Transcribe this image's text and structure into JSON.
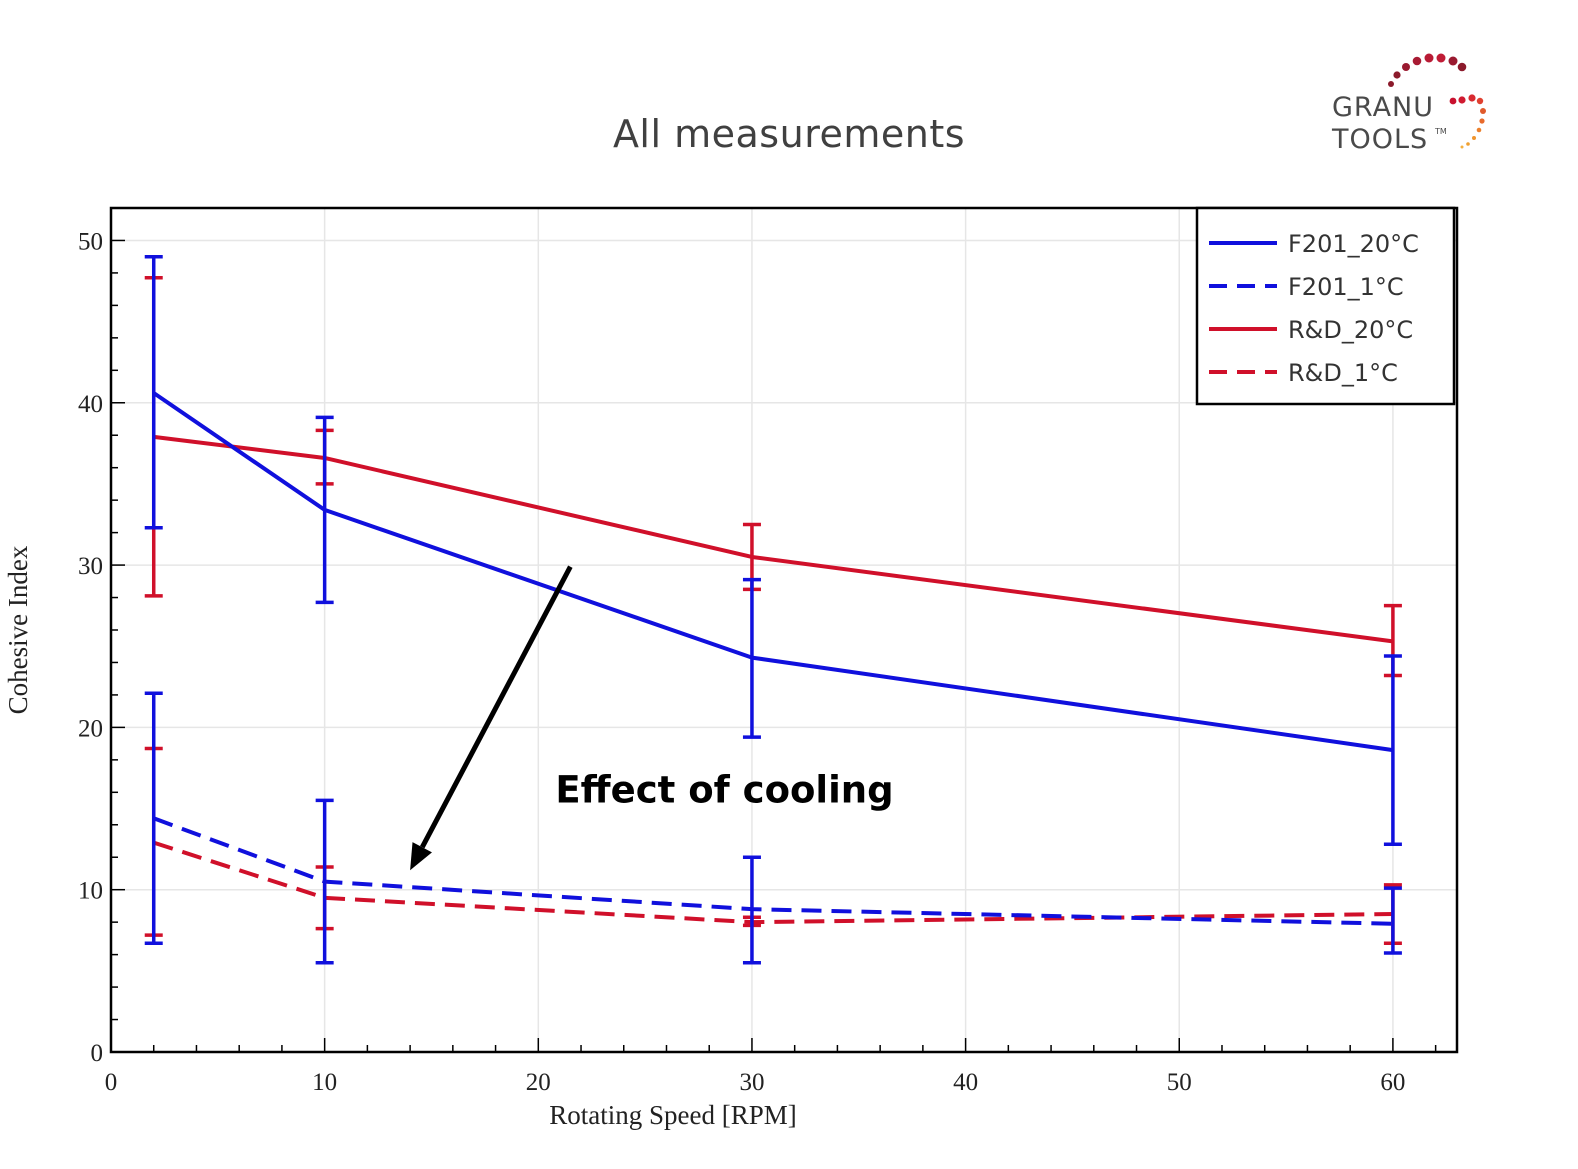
{
  "slide": {
    "title": "All measurements",
    "logo": {
      "line1": "GRANU",
      "line2": "TOOLS",
      "tm": "TM",
      "colors": [
        "#8b1a2b",
        "#c8102e",
        "#e05a2b",
        "#f0a030"
      ]
    }
  },
  "chart_data": {
    "type": "line",
    "title": "",
    "xlabel": "Rotating Speed [RPM]",
    "ylabel": "Cohesive Index",
    "xlim": [
      0,
      63
    ],
    "ylim": [
      0,
      52
    ],
    "xticks": [
      0,
      10,
      20,
      30,
      40,
      50,
      60
    ],
    "yticks": [
      0,
      10,
      20,
      30,
      40,
      50
    ],
    "grid": true,
    "legend_position": "top-right",
    "x": [
      2,
      10,
      30,
      60
    ],
    "series": [
      {
        "name": "F201_20°C",
        "color": "#1010dd",
        "dash": "solid",
        "values": [
          40.6,
          33.4,
          24.3,
          18.6
        ],
        "err_low": [
          32.3,
          27.7,
          19.4,
          12.8
        ],
        "err_high": [
          49.0,
          39.1,
          29.1,
          24.4
        ]
      },
      {
        "name": "F201_1°C",
        "color": "#1010dd",
        "dash": "dashed",
        "values": [
          14.4,
          10.5,
          8.8,
          7.9
        ],
        "err_low": [
          6.7,
          5.5,
          5.5,
          6.1
        ],
        "err_high": [
          22.1,
          15.5,
          12.0,
          10.1
        ]
      },
      {
        "name": "R&D_20°C",
        "color": "#d0102a",
        "dash": "solid",
        "values": [
          37.9,
          36.6,
          30.5,
          25.3
        ],
        "err_low": [
          28.1,
          35.0,
          28.5,
          23.2
        ],
        "err_high": [
          47.7,
          38.3,
          32.5,
          27.5
        ]
      },
      {
        "name": "R&D_1°C",
        "color": "#d0102a",
        "dash": "dashed",
        "values": [
          12.9,
          9.5,
          8.0,
          8.5
        ],
        "err_low": [
          7.2,
          7.6,
          7.8,
          6.7
        ],
        "err_high": [
          18.7,
          11.4,
          8.3,
          10.3
        ]
      }
    ],
    "annotations": [
      {
        "text": "Effect of cooling",
        "x": 20.8,
        "y": 16.0,
        "arrow_from": [
          21.5,
          29.9
        ],
        "arrow_to": [
          14.0,
          11.2
        ]
      }
    ]
  }
}
